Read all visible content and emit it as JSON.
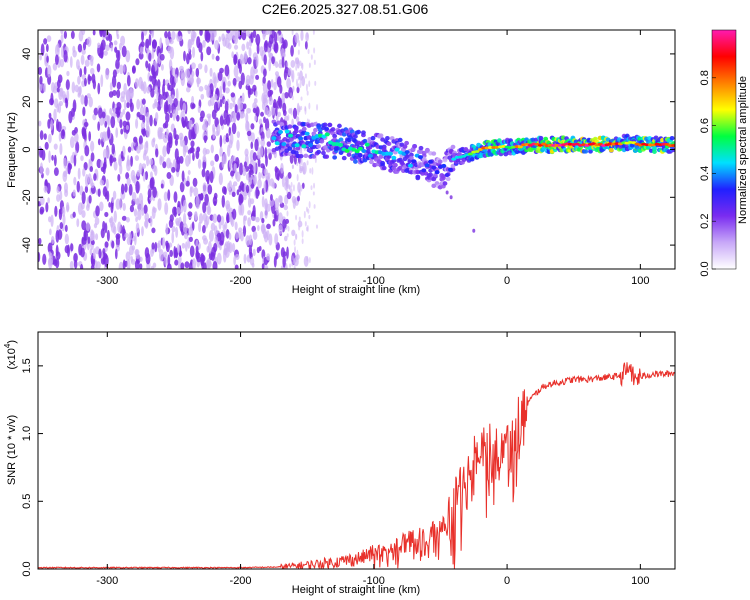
{
  "title": "C2E6.2025.327.08.51.G06",
  "colors": {
    "spectrogram_background": "#ffffff",
    "dense_scatter": "#7b2fe0",
    "light_scatter": "#cdb0f5",
    "signal_track_core": "#ff2020",
    "snr_line": "#e8302a"
  },
  "colorbar": {
    "label": "Normalized spectral amplitude",
    "ticks": [
      "0.0",
      "0.2",
      "0.4",
      "0.6",
      "0.8"
    ],
    "tick_values": [
      0.0,
      0.2,
      0.4,
      0.6,
      0.8
    ],
    "range": [
      0,
      1
    ],
    "colormap": [
      "#ffffff",
      "#c8a8f8",
      "#7a2cf0",
      "#2020ff",
      "#00e0ff",
      "#00ff40",
      "#ffff00",
      "#ff8000",
      "#ff0000",
      "#ff1ab0"
    ]
  },
  "chart_data": [
    {
      "type": "heatmap",
      "xlabel": "Height of straight line (km)",
      "ylabel": "Frequency (Hz)",
      "xlim": [
        -352,
        126
      ],
      "ylim": [
        -50,
        50
      ],
      "xticks": [
        -300,
        -200,
        -100,
        0,
        100
      ],
      "xtick_labels": [
        "-300",
        "-200",
        "-100",
        "0",
        "100"
      ],
      "yticks": [
        -40,
        -20,
        0,
        20,
        40
      ],
      "ytick_labels": [
        "-40",
        "-20",
        "0",
        "20",
        "40"
      ],
      "noise_region_x": [
        -352,
        -165
      ],
      "signal_track": {
        "x": [
          -175,
          -150,
          -125,
          -100,
          -80,
          -60,
          -48,
          -40,
          -30,
          -20,
          -10,
          0,
          20,
          40,
          60,
          80,
          90,
          100,
          126
        ],
        "y": [
          5,
          4,
          3,
          0,
          -3,
          -7,
          -10,
          -4,
          -2,
          0,
          1,
          1,
          2,
          2,
          2,
          2,
          3,
          2,
          2
        ],
        "peak_amplitude": [
          0.4,
          0.45,
          0.5,
          0.45,
          0.4,
          0.35,
          0.3,
          0.4,
          0.5,
          0.7,
          0.8,
          0.6,
          0.85,
          0.9,
          0.9,
          0.9,
          0.6,
          0.85,
          0.85
        ]
      },
      "grid": false
    },
    {
      "type": "line",
      "xlabel": "Height of straight line (km)",
      "ylabel": "SNR (10 * v/v)",
      "scale_label": "(x10",
      "scale_exponent": "4",
      "xlim": [
        -352,
        126
      ],
      "ylim": [
        0,
        1.75
      ],
      "xticks": [
        -300,
        -200,
        -100,
        0,
        100
      ],
      "xtick_labels": [
        "-300",
        "-200",
        "-100",
        "0",
        "100"
      ],
      "yticks": [
        0.0,
        0.5,
        1.0,
        1.5
      ],
      "ytick_labels": [
        "0.0",
        "0.5",
        "1.0",
        "1.5"
      ],
      "series": [
        {
          "color": "#e8302a",
          "x": [
            -352,
            -300,
            -250,
            -200,
            -170,
            -150,
            -130,
            -110,
            -100,
            -90,
            -80,
            -70,
            -60,
            -50,
            -45,
            -40,
            -35,
            -30,
            -27,
            -25,
            -22,
            -20,
            -15,
            -10,
            -5,
            0,
            5,
            10,
            15,
            20,
            25,
            30,
            40,
            50,
            60,
            70,
            80,
            85,
            90,
            92,
            95,
            100,
            110,
            120,
            126
          ],
          "y": [
            0.01,
            0.01,
            0.01,
            0.01,
            0.015,
            0.03,
            0.05,
            0.08,
            0.12,
            0.15,
            0.18,
            0.22,
            0.25,
            0.28,
            0.35,
            0.45,
            0.55,
            0.65,
            0.78,
            0.85,
            0.9,
            0.95,
            0.88,
            0.82,
            0.85,
            0.9,
            1.02,
            1.1,
            1.22,
            1.28,
            1.33,
            1.36,
            1.38,
            1.4,
            1.4,
            1.41,
            1.42,
            1.43,
            1.46,
            1.5,
            1.4,
            1.42,
            1.44,
            1.44,
            1.45
          ]
        }
      ],
      "grid": false
    }
  ]
}
